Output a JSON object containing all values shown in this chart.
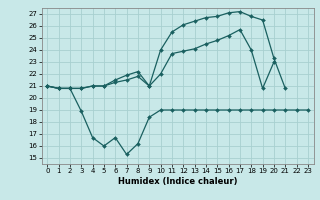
{
  "xlabel": "Humidex (Indice chaleur)",
  "background_color": "#c8e8e8",
  "grid_color": "#a8d0d0",
  "line_color": "#1a6060",
  "x_ticks": [
    0,
    1,
    2,
    3,
    4,
    5,
    6,
    7,
    8,
    9,
    10,
    11,
    12,
    13,
    14,
    15,
    16,
    17,
    18,
    19,
    20,
    21,
    22,
    23
  ],
  "ylim": [
    14.5,
    27.5
  ],
  "xlim": [
    -0.5,
    23.5
  ],
  "yticks": [
    15,
    16,
    17,
    18,
    19,
    20,
    21,
    22,
    23,
    24,
    25,
    26,
    27
  ],
  "line1_y": [
    21.0,
    20.8,
    20.8,
    18.9,
    16.7,
    16.0,
    16.7,
    15.3,
    16.2,
    18.4,
    19.0,
    19.0,
    19.0,
    19.0,
    19.0,
    19.0,
    19.0,
    19.0,
    19.0,
    19.0,
    19.0,
    19.0,
    19.0,
    19.0
  ],
  "line2_x": [
    0,
    1,
    2,
    3,
    4,
    5,
    6,
    7,
    8,
    9,
    10,
    11,
    12,
    13,
    14,
    15,
    16,
    17,
    18,
    19,
    20
  ],
  "line2_y": [
    21.0,
    20.8,
    20.8,
    20.8,
    21.0,
    21.0,
    21.3,
    21.5,
    21.8,
    21.0,
    22.0,
    23.7,
    23.9,
    24.1,
    24.5,
    24.8,
    25.2,
    25.7,
    24.0,
    20.8,
    23.0
  ],
  "line3_x": [
    0,
    1,
    2,
    3,
    4,
    5,
    6,
    7,
    8,
    9,
    10,
    11,
    12,
    13,
    14,
    15,
    16,
    17,
    18,
    19,
    20,
    21
  ],
  "line3_y": [
    21.0,
    20.8,
    20.8,
    20.8,
    21.0,
    21.0,
    21.5,
    21.9,
    22.2,
    21.0,
    24.0,
    25.5,
    26.1,
    26.4,
    26.7,
    26.8,
    27.1,
    27.2,
    26.8,
    26.5,
    23.3,
    20.8
  ]
}
